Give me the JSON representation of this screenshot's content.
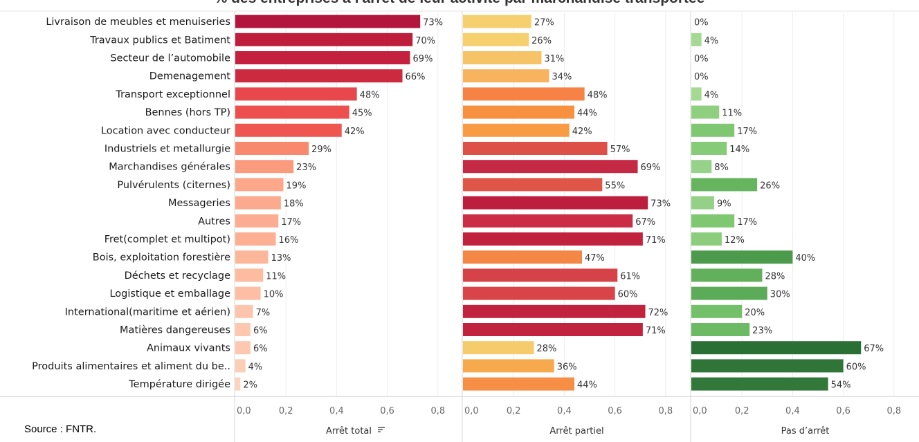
{
  "title": "% des entreprises à l'arrêt de leur activité par marchandise transportée",
  "source": "Source : FNTR.",
  "chart_data": {
    "type": "bar",
    "orientation": "horizontal",
    "categories": [
      "Livraison de meubles et menuiseries",
      "Travaux publics et Batiment",
      "Secteur de l’automobile",
      "Demenagement",
      "Transport exceptionnel",
      "Bennes (hors TP)",
      "Location avec conducteur",
      "Industriels et metallurgie",
      "Marchandises générales",
      "Pulvérulents (citernes)",
      "Messageries",
      "Autres",
      "Fret(complet et multipot)",
      "Bois, exploitation forestière",
      "Déchets et recyclage",
      "Logistique et emballage",
      "International(maritime et aérien)",
      "Matières dangereuses",
      "Animaux vivants",
      "Produits alimentaires et aliment du be..",
      "Température dirigée"
    ],
    "series": [
      {
        "name": "Arrêt total",
        "values": [
          0.73,
          0.7,
          0.69,
          0.66,
          0.48,
          0.45,
          0.42,
          0.29,
          0.23,
          0.19,
          0.18,
          0.17,
          0.16,
          0.13,
          0.11,
          0.1,
          0.07,
          0.06,
          0.06,
          0.04,
          0.02
        ],
        "labels": [
          "73%",
          "70%",
          "69%",
          "66%",
          "48%",
          "45%",
          "42%",
          "29%",
          "23%",
          "19%",
          "18%",
          "17%",
          "16%",
          "13%",
          "11%",
          "10%",
          "7%",
          "6%",
          "6%",
          "4%",
          "2%"
        ],
        "sort_icon": "sort-descending-icon",
        "colors": [
          "#b2163c",
          "#be1e3c",
          "#c3213d",
          "#cc2a3e",
          "#e8474b",
          "#ec4f4e",
          "#ef5650",
          "#f9896d",
          "#fb9b7d",
          "#fca78a",
          "#fcaa8e",
          "#fcad91",
          "#fcaf93",
          "#fcb79b",
          "#fdbba0",
          "#fdbea3",
          "#fdc6ac",
          "#fdc8af",
          "#fdc8af",
          "#fdceb6",
          "#fdd3bc"
        ]
      },
      {
        "name": "Arrêt partiel",
        "values": [
          0.27,
          0.26,
          0.31,
          0.34,
          0.48,
          0.44,
          0.42,
          0.57,
          0.69,
          0.55,
          0.73,
          0.67,
          0.71,
          0.47,
          0.61,
          0.6,
          0.72,
          0.71,
          0.28,
          0.36,
          0.44
        ],
        "labels": [
          "27%",
          "26%",
          "31%",
          "34%",
          "48%",
          "44%",
          "42%",
          "57%",
          "69%",
          "55%",
          "73%",
          "67%",
          "71%",
          "47%",
          "61%",
          "60%",
          "72%",
          "71%",
          "28%",
          "36%",
          "44%"
        ],
        "colors": [
          "#f6cf6e",
          "#f6d06f",
          "#f6c466",
          "#f7b35d",
          "#f68245",
          "#f7913f",
          "#f89b42",
          "#dd5048",
          "#c52a44",
          "#df5649",
          "#be1e3d",
          "#ca2d45",
          "#c1223e",
          "#f48746",
          "#d54248",
          "#d84448",
          "#c1223e",
          "#c1223e",
          "#f6cb6c",
          "#f7a94d",
          "#f68f45"
        ]
      },
      {
        "name": "Pas d’arrêt",
        "values": [
          0.0,
          0.04,
          0.0,
          0.0,
          0.04,
          0.11,
          0.17,
          0.14,
          0.08,
          0.26,
          0.09,
          0.17,
          0.12,
          0.4,
          0.28,
          0.3,
          0.2,
          0.23,
          0.67,
          0.6,
          0.54
        ],
        "labels": [
          "0%",
          "4%",
          "0%",
          "0%",
          "4%",
          "11%",
          "17%",
          "14%",
          "8%",
          "26%",
          "9%",
          "17%",
          "12%",
          "40%",
          "28%",
          "30%",
          "20%",
          "23%",
          "67%",
          "60%",
          "54%"
        ],
        "colors": [
          "#a8da96",
          "#a4d893",
          "#a8da96",
          "#a8da96",
          "#a4d893",
          "#8fcf80",
          "#7fc871",
          "#86cb77",
          "#96d289",
          "#67b45f",
          "#94d187",
          "#7fc871",
          "#8bcd7c",
          "#4c9a4c",
          "#63b05c",
          "#5cab58",
          "#74c06a",
          "#6cba64",
          "#2a6f34",
          "#2f7538",
          "#32783a"
        ]
      }
    ],
    "xlim": [
      0,
      0.9
    ],
    "xticks": [
      "0,0",
      "0,2",
      "0,4",
      "0,6",
      "0,8"
    ],
    "grid": true,
    "legend": "none"
  }
}
